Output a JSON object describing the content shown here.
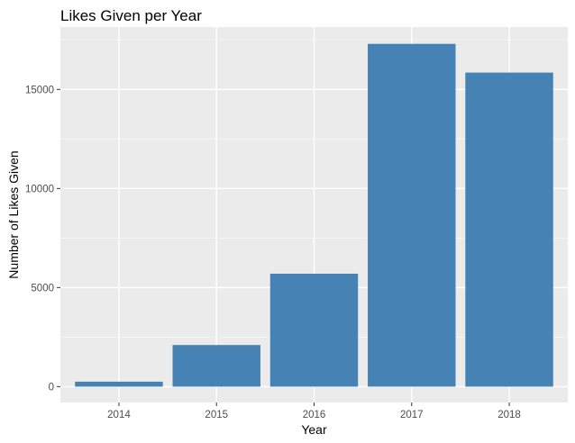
{
  "chart_data": {
    "type": "bar",
    "title": "Likes Given per Year",
    "xlabel": "Year",
    "ylabel": "Number of Likes Given",
    "categories": [
      "2014",
      "2015",
      "2016",
      "2017",
      "2018"
    ],
    "values": [
      250,
      2100,
      5700,
      17300,
      15850
    ],
    "ylim": [
      -800,
      18150
    ],
    "yticks": [
      0,
      5000,
      10000,
      15000
    ],
    "ytick_labels": [
      "0",
      "5000",
      "10000",
      "15000"
    ],
    "grid": true,
    "legend": "none",
    "colors": {
      "bar": "#4682B4",
      "panel": "#EBEBEB",
      "grid_major": "#FFFFFF",
      "grid_minor": "#F5F5F5",
      "tick_text": "#4D4D4D"
    }
  }
}
